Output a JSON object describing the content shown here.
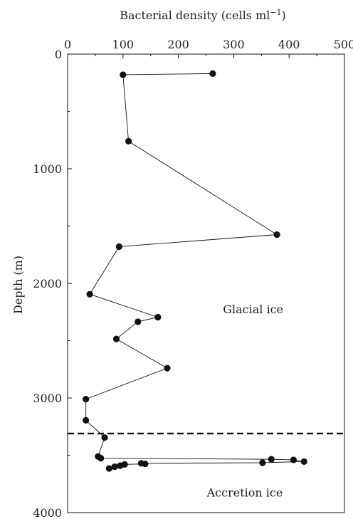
{
  "chart_data": {
    "type": "line",
    "xlabel": "Bacterial density (cells ml",
    "xlabel_sup": "−1",
    "xlabel_close": ")",
    "ylabel": "Depth (m)",
    "x_axis_position": "top",
    "y_inverted": true,
    "xlim": [
      0,
      500
    ],
    "ylim": [
      0,
      4000
    ],
    "xticks": [
      0,
      100,
      200,
      300,
      400,
      500
    ],
    "yticks": [
      0,
      1000,
      2000,
      3000,
      4000
    ],
    "grid": false,
    "series": [
      {
        "points": [
          {
            "density": 262,
            "depth": 170
          },
          {
            "density": 100,
            "depth": 180
          },
          {
            "density": 110,
            "depth": 760
          },
          {
            "density": 378,
            "depth": 1575
          },
          {
            "density": 93,
            "depth": 1680
          },
          {
            "density": 40,
            "depth": 2095
          },
          {
            "density": 163,
            "depth": 2295
          },
          {
            "density": 127,
            "depth": 2335
          },
          {
            "density": 88,
            "depth": 2485
          },
          {
            "density": 180,
            "depth": 2740
          },
          {
            "density": 33,
            "depth": 3010
          },
          {
            "density": 33,
            "depth": 3195
          },
          {
            "density": 67,
            "depth": 3345
          },
          {
            "density": 55,
            "depth": 3510
          },
          {
            "density": 60,
            "depth": 3525
          },
          {
            "density": 368,
            "depth": 3535
          },
          {
            "density": 408,
            "depth": 3540
          },
          {
            "density": 427,
            "depth": 3555
          },
          {
            "density": 352,
            "depth": 3565
          },
          {
            "density": 133,
            "depth": 3570
          },
          {
            "density": 140,
            "depth": 3575
          },
          {
            "density": 103,
            "depth": 3580
          },
          {
            "density": 95,
            "depth": 3590
          },
          {
            "density": 85,
            "depth": 3600
          },
          {
            "density": 75,
            "depth": 3615
          }
        ]
      }
    ],
    "reference_line": {
      "depth": 3310,
      "style": "dashed"
    },
    "annotations": [
      {
        "text": "Glacial ice",
        "density": 335,
        "depth": 2230
      },
      {
        "text": "Accretion ice",
        "density": 320,
        "depth": 3830
      }
    ]
  }
}
